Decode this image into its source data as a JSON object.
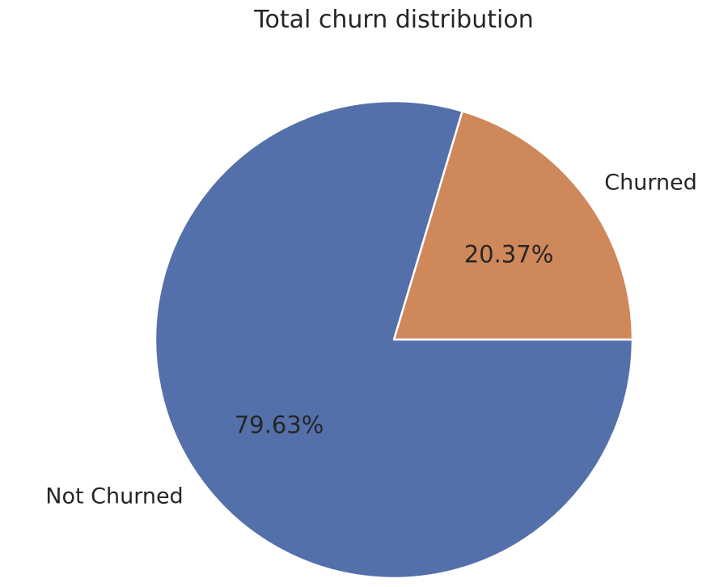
{
  "chart_data": {
    "type": "pie",
    "title": "Total churn distribution",
    "categories": [
      "Churned",
      "Not Churned"
    ],
    "values": [
      20.37,
      79.63
    ],
    "value_labels": [
      "20.37%",
      "79.63%"
    ],
    "colors": [
      "#CF8859",
      "#5470AA"
    ],
    "start_angle_deg": 0,
    "direction": "counterclockwise",
    "legend": "none"
  }
}
